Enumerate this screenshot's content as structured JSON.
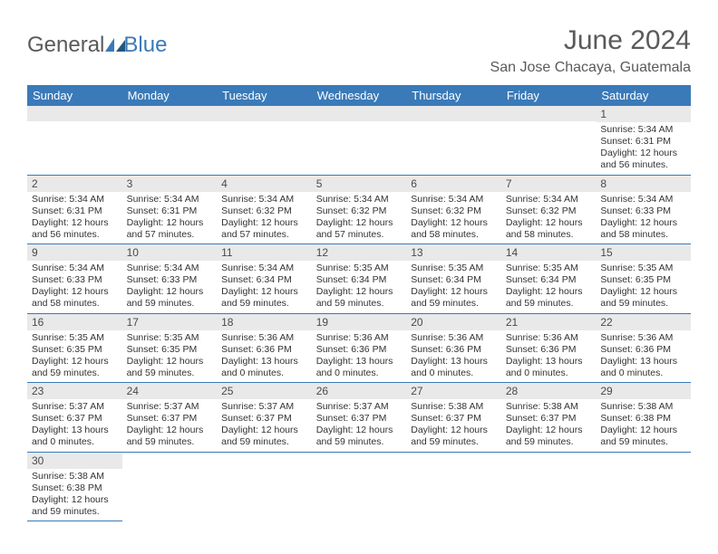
{
  "logo": {
    "text1": "General",
    "text2": "Blue"
  },
  "title": "June 2024",
  "location": "San Jose Chacaya, Guatemala",
  "colors": {
    "header_bg": "#3a7ab8",
    "header_text": "#ffffff",
    "daynum_bg": "#e9e9e9",
    "border": "#3a7ab8",
    "title_color": "#5a5a5a"
  },
  "fonts": {
    "title_size": 30,
    "location_size": 16,
    "weekday_size": 13,
    "daynum_size": 12,
    "body_size": 10.5
  },
  "weekdays": [
    "Sunday",
    "Monday",
    "Tuesday",
    "Wednesday",
    "Thursday",
    "Friday",
    "Saturday"
  ],
  "leading_blanks": 6,
  "days": [
    {
      "n": "1",
      "sunrise": "Sunrise: 5:34 AM",
      "sunset": "Sunset: 6:31 PM",
      "day1": "Daylight: 12 hours",
      "day2": "and 56 minutes."
    },
    {
      "n": "2",
      "sunrise": "Sunrise: 5:34 AM",
      "sunset": "Sunset: 6:31 PM",
      "day1": "Daylight: 12 hours",
      "day2": "and 56 minutes."
    },
    {
      "n": "3",
      "sunrise": "Sunrise: 5:34 AM",
      "sunset": "Sunset: 6:31 PM",
      "day1": "Daylight: 12 hours",
      "day2": "and 57 minutes."
    },
    {
      "n": "4",
      "sunrise": "Sunrise: 5:34 AM",
      "sunset": "Sunset: 6:32 PM",
      "day1": "Daylight: 12 hours",
      "day2": "and 57 minutes."
    },
    {
      "n": "5",
      "sunrise": "Sunrise: 5:34 AM",
      "sunset": "Sunset: 6:32 PM",
      "day1": "Daylight: 12 hours",
      "day2": "and 57 minutes."
    },
    {
      "n": "6",
      "sunrise": "Sunrise: 5:34 AM",
      "sunset": "Sunset: 6:32 PM",
      "day1": "Daylight: 12 hours",
      "day2": "and 58 minutes."
    },
    {
      "n": "7",
      "sunrise": "Sunrise: 5:34 AM",
      "sunset": "Sunset: 6:32 PM",
      "day1": "Daylight: 12 hours",
      "day2": "and 58 minutes."
    },
    {
      "n": "8",
      "sunrise": "Sunrise: 5:34 AM",
      "sunset": "Sunset: 6:33 PM",
      "day1": "Daylight: 12 hours",
      "day2": "and 58 minutes."
    },
    {
      "n": "9",
      "sunrise": "Sunrise: 5:34 AM",
      "sunset": "Sunset: 6:33 PM",
      "day1": "Daylight: 12 hours",
      "day2": "and 58 minutes."
    },
    {
      "n": "10",
      "sunrise": "Sunrise: 5:34 AM",
      "sunset": "Sunset: 6:33 PM",
      "day1": "Daylight: 12 hours",
      "day2": "and 59 minutes."
    },
    {
      "n": "11",
      "sunrise": "Sunrise: 5:34 AM",
      "sunset": "Sunset: 6:34 PM",
      "day1": "Daylight: 12 hours",
      "day2": "and 59 minutes."
    },
    {
      "n": "12",
      "sunrise": "Sunrise: 5:35 AM",
      "sunset": "Sunset: 6:34 PM",
      "day1": "Daylight: 12 hours",
      "day2": "and 59 minutes."
    },
    {
      "n": "13",
      "sunrise": "Sunrise: 5:35 AM",
      "sunset": "Sunset: 6:34 PM",
      "day1": "Daylight: 12 hours",
      "day2": "and 59 minutes."
    },
    {
      "n": "14",
      "sunrise": "Sunrise: 5:35 AM",
      "sunset": "Sunset: 6:34 PM",
      "day1": "Daylight: 12 hours",
      "day2": "and 59 minutes."
    },
    {
      "n": "15",
      "sunrise": "Sunrise: 5:35 AM",
      "sunset": "Sunset: 6:35 PM",
      "day1": "Daylight: 12 hours",
      "day2": "and 59 minutes."
    },
    {
      "n": "16",
      "sunrise": "Sunrise: 5:35 AM",
      "sunset": "Sunset: 6:35 PM",
      "day1": "Daylight: 12 hours",
      "day2": "and 59 minutes."
    },
    {
      "n": "17",
      "sunrise": "Sunrise: 5:35 AM",
      "sunset": "Sunset: 6:35 PM",
      "day1": "Daylight: 12 hours",
      "day2": "and 59 minutes."
    },
    {
      "n": "18",
      "sunrise": "Sunrise: 5:36 AM",
      "sunset": "Sunset: 6:36 PM",
      "day1": "Daylight: 13 hours",
      "day2": "and 0 minutes."
    },
    {
      "n": "19",
      "sunrise": "Sunrise: 5:36 AM",
      "sunset": "Sunset: 6:36 PM",
      "day1": "Daylight: 13 hours",
      "day2": "and 0 minutes."
    },
    {
      "n": "20",
      "sunrise": "Sunrise: 5:36 AM",
      "sunset": "Sunset: 6:36 PM",
      "day1": "Daylight: 13 hours",
      "day2": "and 0 minutes."
    },
    {
      "n": "21",
      "sunrise": "Sunrise: 5:36 AM",
      "sunset": "Sunset: 6:36 PM",
      "day1": "Daylight: 13 hours",
      "day2": "and 0 minutes."
    },
    {
      "n": "22",
      "sunrise": "Sunrise: 5:36 AM",
      "sunset": "Sunset: 6:36 PM",
      "day1": "Daylight: 13 hours",
      "day2": "and 0 minutes."
    },
    {
      "n": "23",
      "sunrise": "Sunrise: 5:37 AM",
      "sunset": "Sunset: 6:37 PM",
      "day1": "Daylight: 13 hours",
      "day2": "and 0 minutes."
    },
    {
      "n": "24",
      "sunrise": "Sunrise: 5:37 AM",
      "sunset": "Sunset: 6:37 PM",
      "day1": "Daylight: 12 hours",
      "day2": "and 59 minutes."
    },
    {
      "n": "25",
      "sunrise": "Sunrise: 5:37 AM",
      "sunset": "Sunset: 6:37 PM",
      "day1": "Daylight: 12 hours",
      "day2": "and 59 minutes."
    },
    {
      "n": "26",
      "sunrise": "Sunrise: 5:37 AM",
      "sunset": "Sunset: 6:37 PM",
      "day1": "Daylight: 12 hours",
      "day2": "and 59 minutes."
    },
    {
      "n": "27",
      "sunrise": "Sunrise: 5:38 AM",
      "sunset": "Sunset: 6:37 PM",
      "day1": "Daylight: 12 hours",
      "day2": "and 59 minutes."
    },
    {
      "n": "28",
      "sunrise": "Sunrise: 5:38 AM",
      "sunset": "Sunset: 6:37 PM",
      "day1": "Daylight: 12 hours",
      "day2": "and 59 minutes."
    },
    {
      "n": "29",
      "sunrise": "Sunrise: 5:38 AM",
      "sunset": "Sunset: 6:38 PM",
      "day1": "Daylight: 12 hours",
      "day2": "and 59 minutes."
    },
    {
      "n": "30",
      "sunrise": "Sunrise: 5:38 AM",
      "sunset": "Sunset: 6:38 PM",
      "day1": "Daylight: 12 hours",
      "day2": "and 59 minutes."
    }
  ]
}
